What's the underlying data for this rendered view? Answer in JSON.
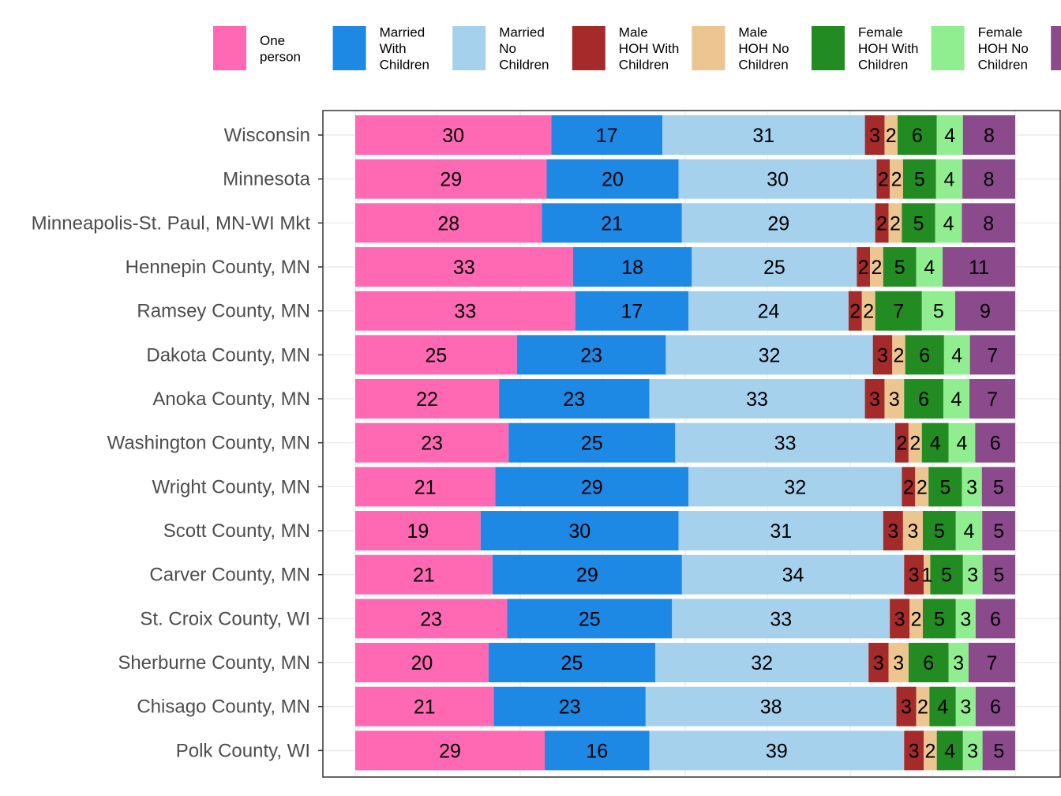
{
  "chart_data": {
    "type": "bar",
    "orientation": "horizontal",
    "stacked": true,
    "percent_stacked": true,
    "categories": [
      "Wisconsin",
      "Minnesota",
      "Minneapolis-St. Paul, MN-WI Mkt",
      "Hennepin County, MN",
      "Ramsey County, MN",
      "Dakota County, MN",
      "Anoka County, MN",
      "Washington County, MN",
      "Wright County, MN",
      "Scott County, MN",
      "Carver County, MN",
      "St. Croix County, WI",
      "Sherburne County, MN",
      "Chisago County, MN",
      "Polk County, WI"
    ],
    "series": [
      {
        "name": "One person",
        "label_lines": [
          "One",
          "person"
        ],
        "color": "#ff69b4",
        "values": [
          30,
          29,
          28,
          33,
          33,
          25,
          22,
          23,
          21,
          19,
          21,
          23,
          20,
          21,
          29
        ]
      },
      {
        "name": "Married With Children",
        "label_lines": [
          "Married",
          "With",
          "Children"
        ],
        "color": "#1e88e5",
        "values": [
          17,
          20,
          21,
          18,
          17,
          23,
          23,
          25,
          29,
          30,
          29,
          25,
          25,
          23,
          16
        ]
      },
      {
        "name": "Married No Children",
        "label_lines": [
          "Married",
          "No",
          "Children"
        ],
        "color": "#a6d1ed",
        "values": [
          31,
          30,
          29,
          25,
          24,
          32,
          33,
          33,
          32,
          31,
          34,
          33,
          32,
          38,
          39
        ]
      },
      {
        "name": "Male HOH With Children",
        "label_lines": [
          "Male",
          "HOH With",
          "Children"
        ],
        "color": "#a52a2a",
        "values": [
          3,
          2,
          2,
          2,
          2,
          3,
          3,
          2,
          2,
          3,
          3,
          3,
          3,
          3,
          3
        ]
      },
      {
        "name": "Male HOH No Children",
        "label_lines": [
          "Male",
          "HOH No",
          "Children"
        ],
        "color": "#edc591",
        "values": [
          2,
          2,
          2,
          2,
          2,
          2,
          3,
          2,
          2,
          3,
          1,
          2,
          3,
          2,
          2
        ]
      },
      {
        "name": "Female HOH With Children",
        "label_lines": [
          "Female",
          "HOH With",
          "Children"
        ],
        "color": "#228b22",
        "values": [
          6,
          5,
          5,
          5,
          7,
          6,
          6,
          4,
          5,
          5,
          5,
          5,
          6,
          4,
          4
        ]
      },
      {
        "name": "Female HOH No Children",
        "label_lines": [
          "Female",
          "HOH No",
          "Children"
        ],
        "color": "#90ee90",
        "values": [
          4,
          4,
          4,
          4,
          5,
          4,
          4,
          4,
          3,
          4,
          3,
          3,
          3,
          3,
          3
        ]
      },
      {
        "name": "",
        "label_lines": [],
        "color": "#8b4a8b",
        "values": [
          8,
          8,
          8,
          11,
          9,
          7,
          7,
          6,
          5,
          5,
          5,
          6,
          7,
          6,
          5
        ]
      }
    ],
    "title": "",
    "xlabel": "",
    "ylabel": "",
    "xlim": [
      0,
      100
    ],
    "grid": true,
    "legend_position": "top"
  }
}
